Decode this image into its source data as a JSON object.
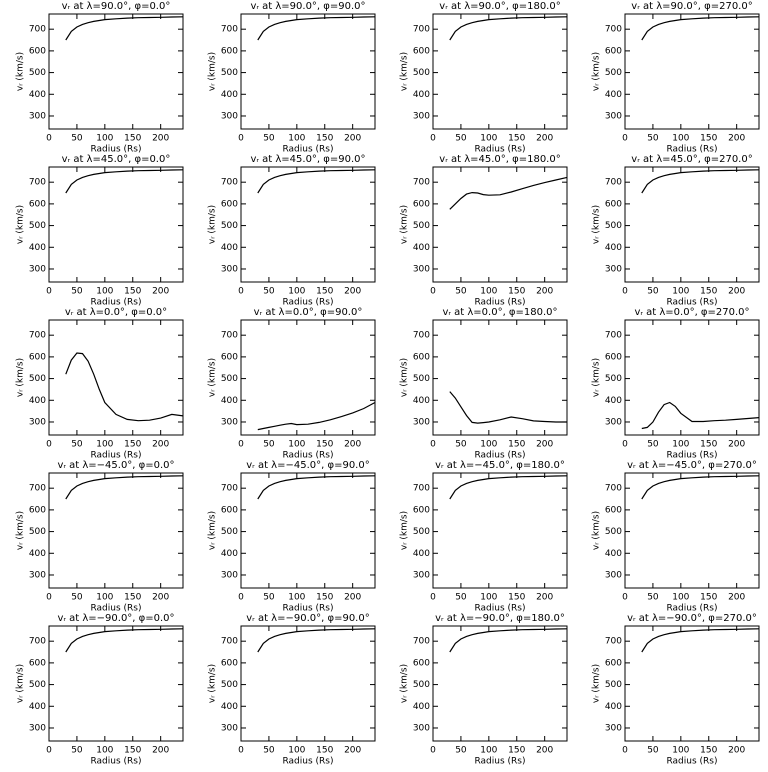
{
  "chart_data": [
    {
      "type": "line",
      "title": "vᵣ at λ=90.0°, φ=0.0°",
      "xlabel": "Radius (Rs)",
      "ylabel": "vᵣ (km/s)",
      "x": [
        30,
        40,
        50,
        60,
        70,
        80,
        90,
        100,
        120,
        140,
        160,
        180,
        200,
        220,
        240
      ],
      "values": [
        650,
        690,
        710,
        722,
        730,
        736,
        740,
        744,
        748,
        751,
        753,
        754,
        755,
        756,
        757
      ],
      "xlim": [
        0,
        240
      ],
      "ylim": [
        240,
        770
      ],
      "xticks": [
        0,
        50,
        100,
        150,
        200
      ],
      "yticks": [
        300,
        400,
        500,
        600,
        700
      ]
    },
    {
      "type": "line",
      "title": "vᵣ at λ=90.0°, φ=90.0°",
      "xlabel": "Radius (Rs)",
      "ylabel": "vᵣ (km/s)",
      "x": [
        30,
        40,
        50,
        60,
        70,
        80,
        90,
        100,
        120,
        140,
        160,
        180,
        200,
        220,
        240
      ],
      "values": [
        650,
        690,
        710,
        722,
        730,
        736,
        740,
        744,
        748,
        751,
        753,
        754,
        755,
        756,
        757
      ],
      "xlim": [
        0,
        240
      ],
      "ylim": [
        240,
        770
      ],
      "xticks": [
        0,
        50,
        100,
        150,
        200
      ],
      "yticks": [
        300,
        400,
        500,
        600,
        700
      ]
    },
    {
      "type": "line",
      "title": "vᵣ at λ=90.0°, φ=180.0°",
      "xlabel": "Radius (Rs)",
      "ylabel": "vᵣ (km/s)",
      "x": [
        30,
        40,
        50,
        60,
        70,
        80,
        90,
        100,
        120,
        140,
        160,
        180,
        200,
        220,
        240
      ],
      "values": [
        650,
        690,
        710,
        722,
        730,
        736,
        740,
        744,
        748,
        751,
        753,
        754,
        755,
        756,
        757
      ],
      "xlim": [
        0,
        240
      ],
      "ylim": [
        240,
        770
      ],
      "xticks": [
        0,
        50,
        100,
        150,
        200
      ],
      "yticks": [
        300,
        400,
        500,
        600,
        700
      ]
    },
    {
      "type": "line",
      "title": "vᵣ at λ=90.0°, φ=270.0°",
      "xlabel": "Radius (Rs)",
      "ylabel": "vᵣ (km/s)",
      "x": [
        30,
        40,
        50,
        60,
        70,
        80,
        90,
        100,
        120,
        140,
        160,
        180,
        200,
        220,
        240
      ],
      "values": [
        650,
        690,
        710,
        722,
        730,
        736,
        740,
        744,
        748,
        751,
        753,
        754,
        755,
        756,
        757
      ],
      "xlim": [
        0,
        240
      ],
      "ylim": [
        240,
        770
      ],
      "xticks": [
        0,
        50,
        100,
        150,
        200
      ],
      "yticks": [
        300,
        400,
        500,
        600,
        700
      ]
    },
    {
      "type": "line",
      "title": "vᵣ at λ=45.0°, φ=0.0°",
      "xlabel": "Radius (Rs)",
      "ylabel": "vᵣ (km/s)",
      "x": [
        30,
        40,
        50,
        60,
        70,
        80,
        90,
        100,
        120,
        140,
        160,
        180,
        200,
        220,
        240
      ],
      "values": [
        650,
        690,
        710,
        722,
        730,
        736,
        740,
        744,
        748,
        751,
        753,
        754,
        755,
        756,
        757
      ],
      "xlim": [
        0,
        240
      ],
      "ylim": [
        240,
        770
      ],
      "xticks": [
        0,
        50,
        100,
        150,
        200
      ],
      "yticks": [
        300,
        400,
        500,
        600,
        700
      ]
    },
    {
      "type": "line",
      "title": "vᵣ at λ=45.0°, φ=90.0°",
      "xlabel": "Radius (Rs)",
      "ylabel": "vᵣ (km/s)",
      "x": [
        30,
        40,
        50,
        60,
        70,
        80,
        90,
        100,
        120,
        140,
        160,
        180,
        200,
        220,
        240
      ],
      "values": [
        650,
        690,
        710,
        722,
        730,
        736,
        740,
        744,
        748,
        751,
        753,
        754,
        755,
        756,
        757
      ],
      "xlim": [
        0,
        240
      ],
      "ylim": [
        240,
        770
      ],
      "xticks": [
        0,
        50,
        100,
        150,
        200
      ],
      "yticks": [
        300,
        400,
        500,
        600,
        700
      ]
    },
    {
      "type": "line",
      "title": "vᵣ at λ=45.0°, φ=180.0°",
      "xlabel": "Radius (Rs)",
      "ylabel": "vᵣ (km/s)",
      "x": [
        30,
        40,
        50,
        60,
        70,
        80,
        90,
        100,
        120,
        140,
        160,
        180,
        200,
        220,
        240
      ],
      "values": [
        575,
        600,
        625,
        645,
        652,
        650,
        643,
        640,
        642,
        655,
        670,
        685,
        698,
        710,
        722
      ],
      "xlim": [
        0,
        240
      ],
      "ylim": [
        240,
        770
      ],
      "xticks": [
        0,
        50,
        100,
        150,
        200
      ],
      "yticks": [
        300,
        400,
        500,
        600,
        700
      ]
    },
    {
      "type": "line",
      "title": "vᵣ at λ=45.0°, φ=270.0°",
      "xlabel": "Radius (Rs)",
      "ylabel": "vᵣ (km/s)",
      "x": [
        30,
        40,
        50,
        60,
        70,
        80,
        90,
        100,
        120,
        140,
        160,
        180,
        200,
        220,
        240
      ],
      "values": [
        650,
        690,
        710,
        722,
        730,
        736,
        740,
        744,
        748,
        751,
        753,
        754,
        755,
        756,
        757
      ],
      "xlim": [
        0,
        240
      ],
      "ylim": [
        240,
        770
      ],
      "xticks": [
        0,
        50,
        100,
        150,
        200
      ],
      "yticks": [
        300,
        400,
        500,
        600,
        700
      ]
    },
    {
      "type": "line",
      "title": "vᵣ at λ=0.0°, φ=0.0°",
      "xlabel": "Radius (Rs)",
      "ylabel": "vᵣ (km/s)",
      "x": [
        30,
        40,
        50,
        60,
        70,
        80,
        90,
        100,
        120,
        140,
        160,
        180,
        200,
        220,
        240
      ],
      "values": [
        520,
        585,
        618,
        615,
        580,
        520,
        450,
        390,
        335,
        312,
        306,
        308,
        318,
        335,
        328
      ],
      "xlim": [
        0,
        240
      ],
      "ylim": [
        240,
        770
      ],
      "xticks": [
        0,
        50,
        100,
        150,
        200
      ],
      "yticks": [
        300,
        400,
        500,
        600,
        700
      ]
    },
    {
      "type": "line",
      "title": "vᵣ at λ=0.0°, φ=90.0°",
      "xlabel": "Radius (Rs)",
      "ylabel": "vᵣ (km/s)",
      "x": [
        30,
        40,
        50,
        60,
        70,
        80,
        90,
        100,
        120,
        140,
        160,
        180,
        200,
        220,
        240
      ],
      "values": [
        265,
        270,
        275,
        280,
        285,
        290,
        293,
        288,
        290,
        298,
        310,
        325,
        342,
        362,
        390
      ],
      "xlim": [
        0,
        240
      ],
      "ylim": [
        240,
        770
      ],
      "xticks": [
        0,
        50,
        100,
        150,
        200
      ],
      "yticks": [
        300,
        400,
        500,
        600,
        700
      ]
    },
    {
      "type": "line",
      "title": "vᵣ at λ=0.0°, φ=180.0°",
      "xlabel": "Radius (Rs)",
      "ylabel": "vᵣ (km/s)",
      "x": [
        30,
        40,
        50,
        60,
        70,
        80,
        90,
        100,
        120,
        140,
        160,
        180,
        200,
        220,
        240
      ],
      "values": [
        440,
        410,
        370,
        330,
        298,
        295,
        297,
        300,
        310,
        323,
        315,
        305,
        302,
        300,
        300
      ],
      "xlim": [
        0,
        240
      ],
      "ylim": [
        240,
        770
      ],
      "xticks": [
        0,
        50,
        100,
        150,
        200
      ],
      "yticks": [
        300,
        400,
        500,
        600,
        700
      ]
    },
    {
      "type": "line",
      "title": "vᵣ at λ=0.0°, φ=270.0°",
      "xlabel": "Radius (Rs)",
      "ylabel": "vᵣ (km/s)",
      "x": [
        30,
        40,
        50,
        60,
        70,
        80,
        90,
        100,
        120,
        140,
        160,
        180,
        200,
        220,
        240
      ],
      "values": [
        270,
        275,
        300,
        345,
        380,
        390,
        372,
        340,
        302,
        302,
        306,
        308,
        312,
        316,
        320
      ],
      "xlim": [
        0,
        240
      ],
      "ylim": [
        240,
        770
      ],
      "xticks": [
        0,
        50,
        100,
        150,
        200
      ],
      "yticks": [
        300,
        400,
        500,
        600,
        700
      ]
    },
    {
      "type": "line",
      "title": "vᵣ at λ=−45.0°, φ=0.0°",
      "xlabel": "Radius (Rs)",
      "ylabel": "vᵣ (km/s)",
      "x": [
        30,
        40,
        50,
        60,
        70,
        80,
        90,
        100,
        120,
        140,
        160,
        180,
        200,
        220,
        240
      ],
      "values": [
        650,
        690,
        710,
        722,
        730,
        736,
        740,
        744,
        748,
        751,
        753,
        754,
        755,
        756,
        757
      ],
      "xlim": [
        0,
        240
      ],
      "ylim": [
        240,
        770
      ],
      "xticks": [
        0,
        50,
        100,
        150,
        200
      ],
      "yticks": [
        300,
        400,
        500,
        600,
        700
      ]
    },
    {
      "type": "line",
      "title": "vᵣ at λ=−45.0°, φ=90.0°",
      "xlabel": "Radius (Rs)",
      "ylabel": "vᵣ (km/s)",
      "x": [
        30,
        40,
        50,
        60,
        70,
        80,
        90,
        100,
        120,
        140,
        160,
        180,
        200,
        220,
        240
      ],
      "values": [
        650,
        690,
        710,
        722,
        730,
        736,
        740,
        744,
        748,
        751,
        753,
        754,
        755,
        756,
        757
      ],
      "xlim": [
        0,
        240
      ],
      "ylim": [
        240,
        770
      ],
      "xticks": [
        0,
        50,
        100,
        150,
        200
      ],
      "yticks": [
        300,
        400,
        500,
        600,
        700
      ]
    },
    {
      "type": "line",
      "title": "vᵣ at λ=−45.0°, φ=180.0°",
      "xlabel": "Radius (Rs)",
      "ylabel": "vᵣ (km/s)",
      "x": [
        30,
        40,
        50,
        60,
        70,
        80,
        90,
        100,
        120,
        140,
        160,
        180,
        200,
        220,
        240
      ],
      "values": [
        650,
        690,
        710,
        722,
        730,
        736,
        740,
        744,
        748,
        751,
        753,
        754,
        755,
        756,
        757
      ],
      "xlim": [
        0,
        240
      ],
      "ylim": [
        240,
        770
      ],
      "xticks": [
        0,
        50,
        100,
        150,
        200
      ],
      "yticks": [
        300,
        400,
        500,
        600,
        700
      ]
    },
    {
      "type": "line",
      "title": "vᵣ at λ=−45.0°, φ=270.0°",
      "xlabel": "Radius (Rs)",
      "ylabel": "vᵣ (km/s)",
      "x": [
        30,
        40,
        50,
        60,
        70,
        80,
        90,
        100,
        120,
        140,
        160,
        180,
        200,
        220,
        240
      ],
      "values": [
        650,
        690,
        710,
        722,
        730,
        736,
        740,
        744,
        748,
        751,
        753,
        754,
        755,
        756,
        757
      ],
      "xlim": [
        0,
        240
      ],
      "ylim": [
        240,
        770
      ],
      "xticks": [
        0,
        50,
        100,
        150,
        200
      ],
      "yticks": [
        300,
        400,
        500,
        600,
        700
      ]
    },
    {
      "type": "line",
      "title": "vᵣ at λ=−90.0°, φ=0.0°",
      "xlabel": "Radius (Rs)",
      "ylabel": "vᵣ (km/s)",
      "x": [
        30,
        40,
        50,
        60,
        70,
        80,
        90,
        100,
        120,
        140,
        160,
        180,
        200,
        220,
        240
      ],
      "values": [
        650,
        690,
        710,
        722,
        730,
        736,
        740,
        744,
        748,
        751,
        753,
        754,
        755,
        756,
        757
      ],
      "xlim": [
        0,
        240
      ],
      "ylim": [
        240,
        770
      ],
      "xticks": [
        0,
        50,
        100,
        150,
        200
      ],
      "yticks": [
        300,
        400,
        500,
        600,
        700
      ]
    },
    {
      "type": "line",
      "title": "vᵣ at λ=−90.0°, φ=90.0°",
      "xlabel": "Radius (Rs)",
      "ylabel": "vᵣ (km/s)",
      "x": [
        30,
        40,
        50,
        60,
        70,
        80,
        90,
        100,
        120,
        140,
        160,
        180,
        200,
        220,
        240
      ],
      "values": [
        650,
        690,
        710,
        722,
        730,
        736,
        740,
        744,
        748,
        751,
        753,
        754,
        755,
        756,
        757
      ],
      "xlim": [
        0,
        240
      ],
      "ylim": [
        240,
        770
      ],
      "xticks": [
        0,
        50,
        100,
        150,
        200
      ],
      "yticks": [
        300,
        400,
        500,
        600,
        700
      ]
    },
    {
      "type": "line",
      "title": "vᵣ at λ=−90.0°, φ=180.0°",
      "xlabel": "Radius (Rs)",
      "ylabel": "vᵣ (km/s)",
      "x": [
        30,
        40,
        50,
        60,
        70,
        80,
        90,
        100,
        120,
        140,
        160,
        180,
        200,
        220,
        240
      ],
      "values": [
        650,
        690,
        710,
        722,
        730,
        736,
        740,
        744,
        748,
        751,
        753,
        754,
        755,
        756,
        757
      ],
      "xlim": [
        0,
        240
      ],
      "ylim": [
        240,
        770
      ],
      "xticks": [
        0,
        50,
        100,
        150,
        200
      ],
      "yticks": [
        300,
        400,
        500,
        600,
        700
      ]
    },
    {
      "type": "line",
      "title": "vᵣ at λ=−90.0°, φ=270.0°",
      "xlabel": "Radius (Rs)",
      "ylabel": "vᵣ (km/s)",
      "x": [
        30,
        40,
        50,
        60,
        70,
        80,
        90,
        100,
        120,
        140,
        160,
        180,
        200,
        220,
        240
      ],
      "values": [
        650,
        690,
        710,
        722,
        730,
        736,
        740,
        744,
        748,
        751,
        753,
        754,
        755,
        756,
        757
      ],
      "xlim": [
        0,
        240
      ],
      "ylim": [
        240,
        770
      ],
      "xticks": [
        0,
        50,
        100,
        150,
        200
      ],
      "yticks": [
        300,
        400,
        500,
        600,
        700
      ]
    }
  ]
}
